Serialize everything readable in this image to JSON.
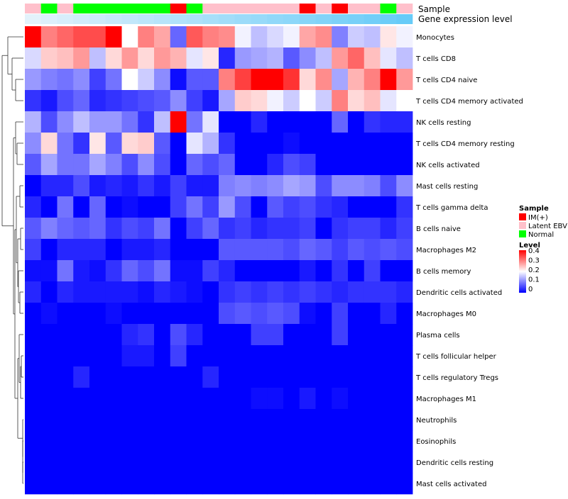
{
  "chart_data": {
    "type": "heatmap",
    "title": "",
    "annotation_labels": {
      "sample": "Sample",
      "expression": "Gene expression level"
    },
    "rows": [
      "Monocytes",
      "T cells CD8",
      "T cells CD4 naive",
      "T cells CD4 memory activated",
      "NK cells resting",
      "T cells CD4 memory resting",
      "NK cells activated",
      "Mast cells resting",
      "T cells gamma delta",
      "B cells naive",
      "Macrophages M2",
      "B cells memory",
      "Dendritic cells activated",
      "Macrophages M0",
      "Plasma cells",
      "T cells follicular helper",
      "T cells regulatory  Tregs",
      "Macrophages M1",
      "Neutrophils",
      "Eosinophils",
      "Dendritic cells resting",
      "Mast cells activated"
    ],
    "column_sample": [
      "Latent EBV",
      "Normal",
      "Latent EBV",
      "Normal",
      "Normal",
      "Normal",
      "Normal",
      "Normal",
      "Normal",
      "IM(+)",
      "Normal",
      "Latent EBV",
      "Latent EBV",
      "Latent EBV",
      "Latent EBV",
      "Latent EBV",
      "Latent EBV",
      "IM(+)",
      "Latent EBV",
      "IM(+)",
      "Latent EBV",
      "Latent EBV",
      "Normal",
      "Latent EBV"
    ],
    "column_expression": [
      0.02,
      0.06,
      0.1,
      0.14,
      0.17,
      0.21,
      0.24,
      0.28,
      0.31,
      0.35,
      0.38,
      0.42,
      0.45,
      0.49,
      0.52,
      0.56,
      0.59,
      0.63,
      0.66,
      0.7,
      0.73,
      0.77,
      0.8,
      0.84
    ],
    "values": [
      [
        0.4,
        0.3,
        0.32,
        0.34,
        0.34,
        0.4,
        0.2,
        0.3,
        0.27,
        0.08,
        0.33,
        0.3,
        0.29,
        0.19,
        0.15,
        0.17,
        0.19,
        0.27,
        0.29,
        0.1,
        0.16,
        0.15,
        0.22,
        0.19
      ],
      [
        0.17,
        0.24,
        0.25,
        0.28,
        0.15,
        0.23,
        0.28,
        0.23,
        0.28,
        0.26,
        0.18,
        0.22,
        0.03,
        0.12,
        0.13,
        0.14,
        0.07,
        0.11,
        0.15,
        0.28,
        0.32,
        0.25,
        0.18,
        0.15
      ],
      [
        0.12,
        0.1,
        0.09,
        0.11,
        0.05,
        0.09,
        0.2,
        0.16,
        0.11,
        0.01,
        0.07,
        0.07,
        0.3,
        0.35,
        0.4,
        0.4,
        0.36,
        0.23,
        0.29,
        0.13,
        0.26,
        0.3,
        0.4,
        0.28
      ],
      [
        0.04,
        0.02,
        0.06,
        0.08,
        0.03,
        0.04,
        0.05,
        0.06,
        0.07,
        0.11,
        0.05,
        0.02,
        0.13,
        0.24,
        0.23,
        0.19,
        0.16,
        0.2,
        0.16,
        0.3,
        0.23,
        0.25,
        0.18,
        0.2
      ],
      [
        0.14,
        0.06,
        0.11,
        0.15,
        0.12,
        0.12,
        0.09,
        0.04,
        0.15,
        0.4,
        0.09,
        0.18,
        0.0,
        0.0,
        0.03,
        0.0,
        0.0,
        0.0,
        0.0,
        0.08,
        0.0,
        0.04,
        0.03,
        0.03
      ],
      [
        0.11,
        0.23,
        0.09,
        0.04,
        0.22,
        0.07,
        0.23,
        0.24,
        0.07,
        0.0,
        0.18,
        0.14,
        0.04,
        0.0,
        0.0,
        0.0,
        0.01,
        0.0,
        0.0,
        0.0,
        0.0,
        0.0,
        0.0,
        0.0
      ],
      [
        0.07,
        0.13,
        0.09,
        0.09,
        0.13,
        0.1,
        0.06,
        0.11,
        0.06,
        0.0,
        0.08,
        0.06,
        0.08,
        0.0,
        0.0,
        0.03,
        0.06,
        0.05,
        0.0,
        0.0,
        0.0,
        0.0,
        0.0,
        0.0
      ],
      [
        0.0,
        0.03,
        0.03,
        0.06,
        0.02,
        0.03,
        0.02,
        0.04,
        0.02,
        0.05,
        0.02,
        0.02,
        0.1,
        0.11,
        0.1,
        0.11,
        0.13,
        0.12,
        0.06,
        0.11,
        0.11,
        0.1,
        0.06,
        0.11
      ],
      [
        0.03,
        0.0,
        0.09,
        0.0,
        0.08,
        0.0,
        0.01,
        0.0,
        0.0,
        0.05,
        0.09,
        0.05,
        0.12,
        0.06,
        0.0,
        0.07,
        0.05,
        0.06,
        0.04,
        0.03,
        0.0,
        0.0,
        0.0,
        0.04
      ],
      [
        0.07,
        0.1,
        0.08,
        0.07,
        0.08,
        0.04,
        0.06,
        0.05,
        0.09,
        0.0,
        0.05,
        0.08,
        0.04,
        0.05,
        0.03,
        0.04,
        0.04,
        0.05,
        0.0,
        0.04,
        0.05,
        0.05,
        0.03,
        0.05
      ],
      [
        0.05,
        0.0,
        0.03,
        0.03,
        0.03,
        0.0,
        0.02,
        0.02,
        0.03,
        0.0,
        0.0,
        0.0,
        0.07,
        0.07,
        0.07,
        0.07,
        0.06,
        0.08,
        0.07,
        0.05,
        0.07,
        0.06,
        0.07,
        0.06
      ],
      [
        0.01,
        0.01,
        0.09,
        0.02,
        0.01,
        0.04,
        0.08,
        0.06,
        0.09,
        0.01,
        0.01,
        0.05,
        0.03,
        0.0,
        0.0,
        0.0,
        0.0,
        0.02,
        0.0,
        0.04,
        0.0,
        0.05,
        0.0,
        0.0
      ],
      [
        0.03,
        0.0,
        0.03,
        0.02,
        0.02,
        0.02,
        0.02,
        0.01,
        0.03,
        0.02,
        0.01,
        0.0,
        0.04,
        0.05,
        0.04,
        0.05,
        0.04,
        0.05,
        0.04,
        0.03,
        0.04,
        0.04,
        0.04,
        0.03
      ],
      [
        0.0,
        0.01,
        0.0,
        0.0,
        0.0,
        0.01,
        0.0,
        0.0,
        0.0,
        0.0,
        0.0,
        0.0,
        0.06,
        0.07,
        0.06,
        0.07,
        0.06,
        0.01,
        0.0,
        0.05,
        0.0,
        0.0,
        0.03,
        0.0
      ],
      [
        0.0,
        0.0,
        0.0,
        0.0,
        0.0,
        0.0,
        0.03,
        0.04,
        0.0,
        0.06,
        0.03,
        0.0,
        0.0,
        0.0,
        0.05,
        0.05,
        0.0,
        0.0,
        0.0,
        0.05,
        0.0,
        0.0,
        0.0,
        0.0
      ],
      [
        0.0,
        0.0,
        0.0,
        0.0,
        0.0,
        0.0,
        0.02,
        0.02,
        0.0,
        0.05,
        0.0,
        0.0,
        0.0,
        0.0,
        0.0,
        0.0,
        0.0,
        0.0,
        0.0,
        0.0,
        0.0,
        0.0,
        0.0,
        0.0
      ],
      [
        0.0,
        0.0,
        0.0,
        0.03,
        0.0,
        0.0,
        0.0,
        0.0,
        0.0,
        0.0,
        0.0,
        0.03,
        0.0,
        0.0,
        0.0,
        0.0,
        0.0,
        0.0,
        0.0,
        0.0,
        0.0,
        0.0,
        0.0,
        0.0
      ],
      [
        0.0,
        0.0,
        0.0,
        0.0,
        0.0,
        0.0,
        0.0,
        0.0,
        0.0,
        0.0,
        0.0,
        0.0,
        0.0,
        0.0,
        0.01,
        0.01,
        0.0,
        0.02,
        0.0,
        0.01,
        0.0,
        0.0,
        0.0,
        0.0
      ],
      [
        0,
        0,
        0,
        0,
        0,
        0,
        0,
        0,
        0,
        0,
        0,
        0,
        0,
        0,
        0,
        0,
        0,
        0,
        0,
        0,
        0,
        0,
        0,
        0
      ],
      [
        0,
        0,
        0,
        0,
        0,
        0,
        0,
        0,
        0,
        0,
        0,
        0,
        0,
        0,
        0,
        0,
        0,
        0,
        0,
        0,
        0,
        0,
        0,
        0
      ],
      [
        0,
        0,
        0,
        0,
        0,
        0,
        0,
        0,
        0,
        0,
        0,
        0,
        0,
        0,
        0,
        0,
        0,
        0,
        0,
        0,
        0,
        0,
        0,
        0
      ],
      [
        0,
        0,
        0,
        0,
        0,
        0,
        0,
        0,
        0,
        0,
        0,
        0,
        0,
        0,
        0,
        0,
        0,
        0,
        0,
        0,
        0,
        0,
        0,
        0
      ]
    ],
    "value_range": [
      0,
      0.4
    ],
    "color_scale": {
      "low": "#0000ff",
      "mid": "#ffffff",
      "high": "#ff0000",
      "midpoint": 0.2
    },
    "expression_scale": {
      "low": "#e6f3fb",
      "high": "#4fc3f7"
    },
    "legend": {
      "placement": "right",
      "sample": {
        "title": "Sample",
        "items": [
          {
            "label": "IM(+)",
            "color": "#ff0000"
          },
          {
            "label": "Latent EBV",
            "color": "#ffc0cb"
          },
          {
            "label": "Normal",
            "color": "#00ff00"
          }
        ]
      },
      "level": {
        "title": "Level",
        "ticks": [
          "0.4",
          "0.3",
          "0.2",
          "0.1",
          "0"
        ]
      }
    },
    "dendrogram": {
      "side": "left",
      "clustered": "rows"
    }
  }
}
